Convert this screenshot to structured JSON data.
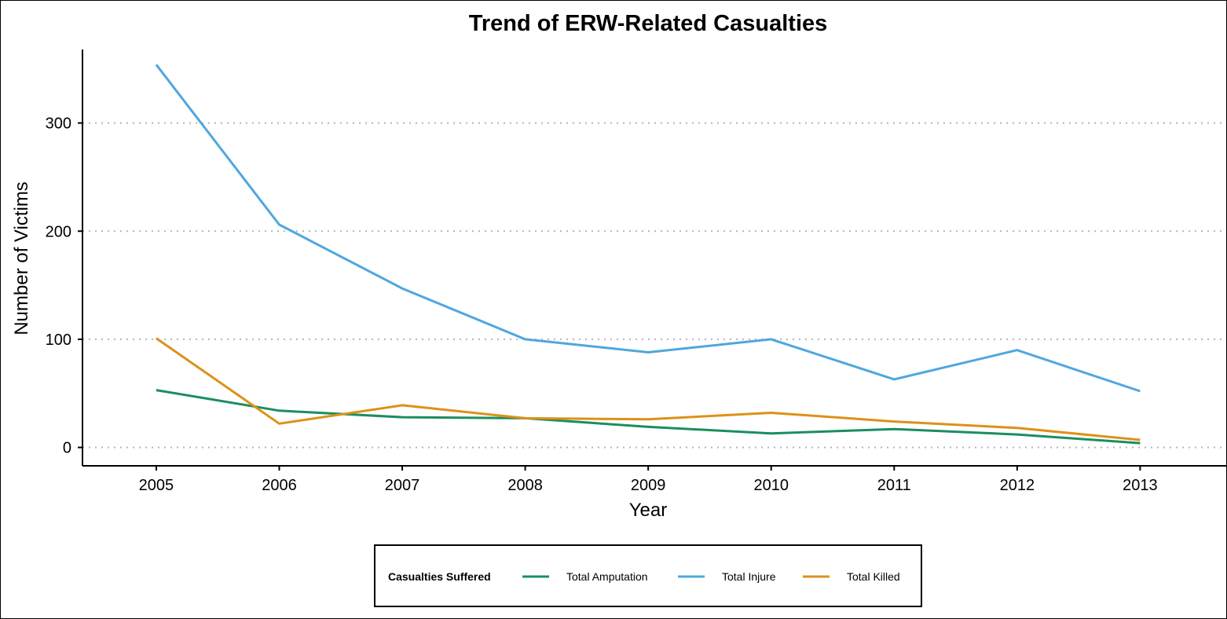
{
  "chart_data": {
    "type": "line",
    "title": "Trend of ERW-Related Casualties",
    "xlabel": "Year",
    "ylabel": "Number of Victims",
    "x": [
      2005,
      2006,
      2007,
      2008,
      2009,
      2010,
      2011,
      2012,
      2013
    ],
    "x_tick_labels": [
      "2005",
      "2006",
      "2007",
      "2008",
      "2009",
      "2010",
      "2011",
      "2012",
      "2013"
    ],
    "xlim": [
      2004.4,
      2013.7
    ],
    "ylim": [
      -17,
      368
    ],
    "y_ticks": [
      0,
      100,
      200,
      300
    ],
    "y_tick_labels": [
      "0",
      "100",
      "200",
      "300"
    ],
    "grid": "horizontal dotted",
    "legend": {
      "title": "Casualties Suffered",
      "placement": "bottom"
    },
    "series": [
      {
        "name": "Total Amputation",
        "color": "#1b8e5f",
        "values": [
          53,
          34,
          28,
          27,
          19,
          13,
          17,
          12,
          4
        ]
      },
      {
        "name": "Total Injure",
        "color": "#4ea7de",
        "values": [
          354,
          206,
          147,
          100,
          88,
          100,
          63,
          90,
          52
        ]
      },
      {
        "name": "Total Killed",
        "color": "#dd9119",
        "values": [
          101,
          22,
          39,
          27,
          26,
          32,
          24,
          18,
          7
        ]
      }
    ]
  }
}
